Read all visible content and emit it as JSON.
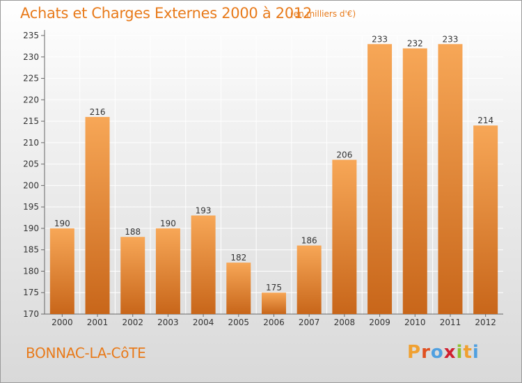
{
  "header": {
    "title": "Achats et Charges Externes 2000 à 2012",
    "unit": "(en milliers d'€)"
  },
  "footer": {
    "city": "BONNAC-LA-CôTE",
    "logo_letters": [
      "P",
      "r",
      "o",
      "x",
      "i",
      "t",
      "i"
    ],
    "logo_colors": [
      "#f0a030",
      "#e05020",
      "#50a0e0",
      "#d02030",
      "#90c030",
      "#f0a030",
      "#50a0e0"
    ]
  },
  "colors": {
    "bar_top": "#f7a757",
    "bar_bottom": "#c8661a",
    "accent": "#e87a1a",
    "grid": "#ffffff",
    "text": "#333333"
  },
  "chart_data": {
    "type": "bar",
    "title": "Achats et Charges Externes 2000 à 2012",
    "subtitle": "(en milliers d'€)",
    "categories": [
      "2000",
      "2001",
      "2002",
      "2003",
      "2004",
      "2005",
      "2006",
      "2007",
      "2008",
      "2009",
      "2010",
      "2011",
      "2012"
    ],
    "values": [
      190,
      216,
      188,
      190,
      193,
      182,
      175,
      186,
      206,
      233,
      232,
      233,
      214
    ],
    "ylim": [
      170,
      235
    ],
    "yticks": [
      170,
      175,
      180,
      185,
      190,
      195,
      200,
      205,
      210,
      215,
      220,
      225,
      230,
      235
    ],
    "grid": true,
    "data_labels": true
  }
}
